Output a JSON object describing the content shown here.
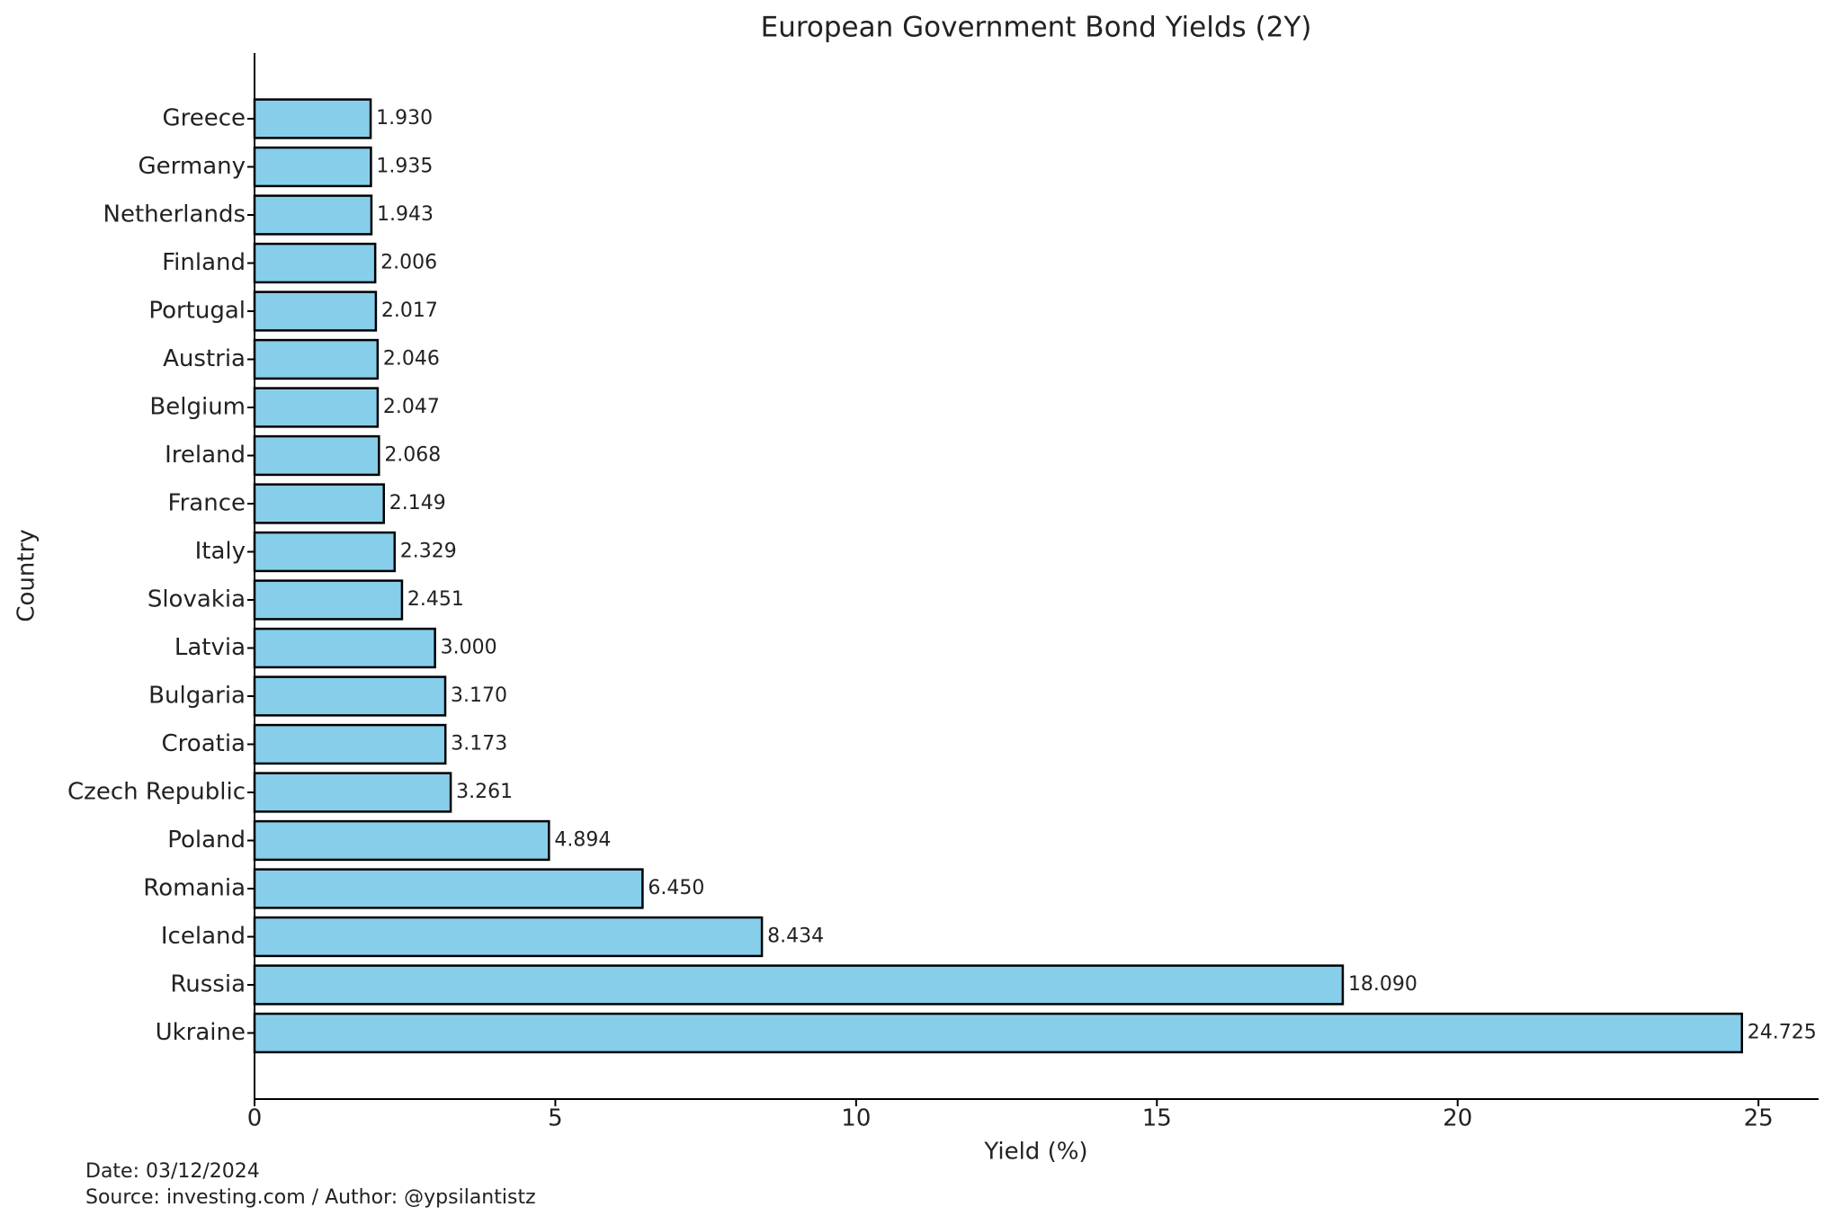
{
  "chart_data": {
    "type": "barh",
    "title": "European Government Bond Yields (2Y)",
    "x_label": "Yield (%)",
    "y_label": "Country",
    "categories": [
      "Greece",
      "Germany",
      "Netherlands",
      "Finland",
      "Portugal",
      "Austria",
      "Belgium",
      "Ireland",
      "France",
      "Italy",
      "Slovakia",
      "Latvia",
      "Bulgaria",
      "Croatia",
      "Czech Republic",
      "Poland",
      "Romania",
      "Iceland",
      "Russia",
      "Ukraine"
    ],
    "values": [
      1.93,
      1.935,
      1.943,
      2.006,
      2.017,
      2.046,
      2.047,
      2.068,
      2.149,
      2.329,
      2.451,
      3.0,
      3.17,
      3.173,
      3.261,
      4.894,
      6.45,
      8.434,
      18.09,
      24.725
    ],
    "value_labels": [
      "1.930",
      "1.935",
      "1.943",
      "2.006",
      "2.017",
      "2.046",
      "2.047",
      "2.068",
      "2.149",
      "2.329",
      "2.451",
      "3.000",
      "3.170",
      "3.173",
      "3.261",
      "4.894",
      "6.450",
      "8.434",
      "18.090",
      "24.725"
    ],
    "color": "#87ceeb",
    "edge_color": "#000000",
    "xlim": [
      0,
      26
    ],
    "xticks": [
      0,
      5,
      10,
      15,
      20,
      25
    ],
    "grid": false,
    "annotations": [
      "Date: 03/12/2024",
      "Source: investing.com / Author: @ypsilantistz"
    ]
  }
}
